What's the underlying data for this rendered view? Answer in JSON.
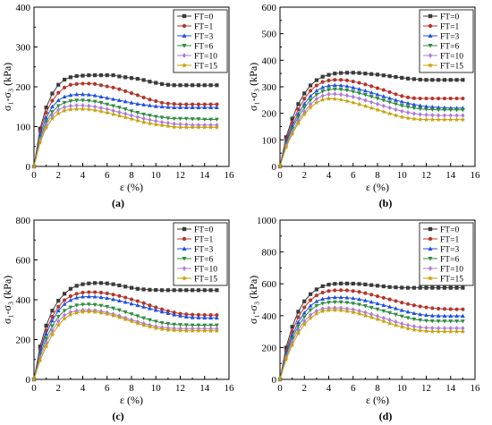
{
  "chart_data": [
    {
      "id": "a",
      "type": "line",
      "panel_label": "(a)",
      "xlabel": "ε (%)",
      "ylabel": "σ₁-σ₃ (kPa)",
      "xlim": [
        0,
        16
      ],
      "ylim": [
        0,
        400
      ],
      "xticks": [
        0,
        2,
        4,
        6,
        8,
        10,
        12,
        14,
        16
      ],
      "yticks": [
        0,
        100,
        200,
        300,
        400
      ],
      "legend_position": "top-right",
      "x": [
        0,
        0.5,
        1,
        1.5,
        2,
        2.5,
        3,
        3.5,
        4,
        4.5,
        5,
        5.5,
        6,
        6.5,
        7,
        7.5,
        8,
        8.5,
        9,
        9.5,
        10,
        10.5,
        11,
        11.5,
        12,
        12.5,
        13,
        13.5,
        14,
        14.5,
        15
      ],
      "series": [
        {
          "name": "FT=0",
          "color": "#3a3a3a",
          "marker": "square",
          "values": [
            0,
            95,
            148,
            183,
            205,
            218,
            224,
            227,
            228,
            229,
            229,
            229,
            229,
            229,
            226,
            224,
            222,
            220,
            217,
            213,
            210,
            207,
            205,
            204,
            204,
            204,
            204,
            204,
            204,
            204,
            204
          ]
        },
        {
          "name": "FT=1",
          "color": "#b5352b",
          "marker": "circle",
          "values": [
            0,
            88,
            135,
            165,
            185,
            198,
            205,
            207,
            208,
            208,
            207,
            204,
            201,
            198,
            194,
            189,
            184,
            179,
            173,
            168,
            164,
            160,
            158,
            157,
            156,
            156,
            156,
            156,
            156,
            156,
            156
          ]
        },
        {
          "name": "FT=3",
          "color": "#1f4fe0",
          "marker": "triangle-up",
          "values": [
            0,
            80,
            122,
            150,
            166,
            175,
            179,
            181,
            181,
            180,
            178,
            175,
            172,
            169,
            166,
            163,
            160,
            157,
            155,
            153,
            151,
            150,
            149,
            148,
            148,
            148,
            148,
            148,
            148,
            148,
            148
          ]
        },
        {
          "name": "FT=6",
          "color": "#2e8b3e",
          "marker": "triangle-down",
          "values": [
            0,
            72,
            112,
            137,
            152,
            160,
            164,
            166,
            166,
            165,
            163,
            160,
            156,
            152,
            148,
            144,
            139,
            135,
            131,
            128,
            125,
            123,
            121,
            120,
            120,
            120,
            119,
            119,
            118,
            118,
            118
          ]
        },
        {
          "name": "FT=10",
          "color": "#b07ad8",
          "marker": "diamond",
          "values": [
            0,
            66,
            104,
            128,
            142,
            149,
            152,
            153,
            153,
            152,
            150,
            147,
            144,
            140,
            136,
            132,
            128,
            124,
            120,
            117,
            114,
            111,
            109,
            107,
            106,
            105,
            104,
            104,
            104,
            104,
            104
          ]
        },
        {
          "name": "FT=15",
          "color": "#c5a000",
          "marker": "star",
          "values": [
            0,
            60,
            97,
            120,
            133,
            140,
            143,
            144,
            144,
            143,
            141,
            138,
            135,
            131,
            127,
            123,
            119,
            115,
            111,
            108,
            105,
            103,
            101,
            99,
            98,
            98,
            98,
            98,
            98,
            98,
            98
          ]
        }
      ]
    },
    {
      "id": "b",
      "type": "line",
      "panel_label": "(b)",
      "xlabel": "ε (%)",
      "ylabel": "σ₁-σ₃ (kPa)",
      "xlim": [
        0,
        16
      ],
      "ylim": [
        0,
        600
      ],
      "xticks": [
        0,
        2,
        4,
        6,
        8,
        10,
        12,
        14,
        16
      ],
      "yticks": [
        0,
        100,
        200,
        300,
        400,
        500,
        600
      ],
      "legend_position": "top-right",
      "x": [
        0,
        0.5,
        1,
        1.5,
        2,
        2.5,
        3,
        3.5,
        4,
        4.5,
        5,
        5.5,
        6,
        6.5,
        7,
        7.5,
        8,
        8.5,
        9,
        9.5,
        10,
        10.5,
        11,
        11.5,
        12,
        12.5,
        13,
        13.5,
        14,
        14.5,
        15
      ],
      "series": [
        {
          "name": "FT=0",
          "color": "#3a3a3a",
          "marker": "square",
          "values": [
            0,
            110,
            180,
            235,
            275,
            305,
            325,
            338,
            345,
            350,
            352,
            353,
            353,
            352,
            350,
            348,
            346,
            343,
            340,
            337,
            334,
            331,
            329,
            327,
            326,
            326,
            326,
            326,
            326,
            326,
            326
          ]
        },
        {
          "name": "FT=1",
          "color": "#b5352b",
          "marker": "circle",
          "values": [
            0,
            100,
            165,
            215,
            255,
            285,
            305,
            318,
            324,
            326,
            326,
            324,
            320,
            315,
            309,
            302,
            295,
            288,
            280,
            272,
            265,
            260,
            257,
            256,
            256,
            256,
            256,
            256,
            256,
            256,
            256
          ]
        },
        {
          "name": "FT=3",
          "color": "#1f4fe0",
          "marker": "triangle-up",
          "values": [
            0,
            92,
            152,
            198,
            236,
            265,
            285,
            298,
            304,
            306,
            305,
            302,
            297,
            291,
            285,
            278,
            271,
            264,
            257,
            250,
            244,
            238,
            233,
            229,
            226,
            224,
            222,
            221,
            220,
            220,
            220
          ]
        },
        {
          "name": "FT=6",
          "color": "#2e8b3e",
          "marker": "triangle-down",
          "values": [
            0,
            85,
            142,
            186,
            222,
            250,
            270,
            283,
            289,
            291,
            290,
            287,
            282,
            276,
            270,
            263,
            256,
            249,
            242,
            235,
            229,
            224,
            220,
            217,
            215,
            214,
            213,
            213,
            213,
            213,
            213
          ]
        },
        {
          "name": "FT=10",
          "color": "#b07ad8",
          "marker": "diamond",
          "values": [
            0,
            78,
            130,
            172,
            206,
            234,
            254,
            266,
            272,
            273,
            271,
            267,
            262,
            256,
            249,
            242,
            235,
            228,
            221,
            214,
            208,
            203,
            199,
            196,
            194,
            193,
            192,
            192,
            192,
            192,
            192
          ]
        },
        {
          "name": "FT=15",
          "color": "#c5a000",
          "marker": "star",
          "values": [
            0,
            72,
            122,
            162,
            196,
            222,
            240,
            251,
            255,
            254,
            251,
            246,
            240,
            234,
            227,
            220,
            213,
            206,
            199,
            192,
            186,
            182,
            179,
            177,
            176,
            176,
            176,
            176,
            176,
            176,
            176
          ]
        }
      ]
    },
    {
      "id": "c",
      "type": "line",
      "panel_label": "(c)",
      "xlabel": "ε (%)",
      "ylabel": "σ₁-σ₃ (kPa)",
      "xlim": [
        0,
        16
      ],
      "ylim": [
        0,
        800
      ],
      "xticks": [
        0,
        2,
        4,
        6,
        8,
        10,
        12,
        14,
        16
      ],
      "yticks": [
        0,
        200,
        400,
        600,
        800
      ],
      "legend_position": "top-right",
      "x": [
        0,
        0.5,
        1,
        1.5,
        2,
        2.5,
        3,
        3.5,
        4,
        4.5,
        5,
        5.5,
        6,
        6.5,
        7,
        7.5,
        8,
        8.5,
        9,
        9.5,
        10,
        10.5,
        11,
        11.5,
        12,
        12.5,
        13,
        13.5,
        14,
        14.5,
        15
      ],
      "series": [
        {
          "name": "FT=0",
          "color": "#3a3a3a",
          "marker": "square",
          "values": [
            0,
            165,
            270,
            345,
            395,
            430,
            455,
            470,
            478,
            482,
            484,
            484,
            482,
            478,
            472,
            466,
            460,
            455,
            452,
            450,
            449,
            448,
            448,
            448,
            448,
            448,
            448,
            448,
            448,
            448,
            448
          ]
        },
        {
          "name": "FT=1",
          "color": "#b5352b",
          "marker": "circle",
          "values": [
            0,
            150,
            245,
            315,
            365,
            398,
            418,
            430,
            436,
            438,
            438,
            436,
            432,
            426,
            419,
            411,
            402,
            393,
            383,
            372,
            362,
            352,
            343,
            336,
            330,
            327,
            325,
            324,
            323,
            323,
            323
          ]
        },
        {
          "name": "FT=3",
          "color": "#1f4fe0",
          "marker": "triangle-up",
          "values": [
            0,
            140,
            228,
            295,
            345,
            378,
            398,
            410,
            415,
            416,
            415,
            412,
            408,
            402,
            395,
            388,
            380,
            372,
            364,
            356,
            348,
            340,
            332,
            325,
            319,
            314,
            311,
            310,
            309,
            309,
            309
          ]
        },
        {
          "name": "FT=6",
          "color": "#2e8b3e",
          "marker": "triangle-down",
          "values": [
            0,
            125,
            205,
            268,
            315,
            345,
            362,
            372,
            376,
            377,
            375,
            371,
            365,
            357,
            348,
            338,
            328,
            318,
            308,
            299,
            291,
            284,
            279,
            276,
            274,
            273,
            272,
            272,
            272,
            272,
            272
          ]
        },
        {
          "name": "FT=10",
          "color": "#b07ad8",
          "marker": "diamond",
          "values": [
            0,
            110,
            185,
            245,
            292,
            322,
            338,
            345,
            348,
            348,
            346,
            342,
            336,
            328,
            319,
            309,
            299,
            290,
            281,
            273,
            266,
            261,
            258,
            256,
            255,
            255,
            255,
            255,
            255,
            255,
            255
          ]
        },
        {
          "name": "FT=15",
          "color": "#c5a000",
          "marker": "star",
          "values": [
            0,
            95,
            165,
            225,
            272,
            305,
            325,
            335,
            339,
            340,
            338,
            334,
            328,
            320,
            311,
            301,
            291,
            281,
            272,
            264,
            257,
            252,
            248,
            246,
            245,
            244,
            244,
            244,
            244,
            244,
            244
          ]
        }
      ]
    },
    {
      "id": "d",
      "type": "line",
      "panel_label": "(d)",
      "xlabel": "ε (%)",
      "ylabel": "σ₁-σ₃ (kPa)",
      "xlim": [
        0,
        16
      ],
      "ylim": [
        0,
        1000
      ],
      "xticks": [
        0,
        2,
        4,
        6,
        8,
        10,
        12,
        14,
        16
      ],
      "yticks": [
        0,
        200,
        400,
        600,
        800,
        1000
      ],
      "legend_position": "top-right",
      "x": [
        0,
        0.5,
        1,
        1.5,
        2,
        2.5,
        3,
        3.5,
        4,
        4.5,
        5,
        5.5,
        6,
        6.5,
        7,
        7.5,
        8,
        8.5,
        9,
        9.5,
        10,
        10.5,
        11,
        11.5,
        12,
        12.5,
        13,
        13.5,
        14,
        14.5,
        15
      ],
      "series": [
        {
          "name": "FT=0",
          "color": "#3a3a3a",
          "marker": "square",
          "values": [
            0,
            200,
            330,
            425,
            490,
            535,
            565,
            585,
            595,
            600,
            602,
            602,
            601,
            599,
            596,
            592,
            588,
            584,
            580,
            578,
            576,
            575,
            575,
            575,
            575,
            575,
            575,
            575,
            575,
            575,
            575
          ]
        },
        {
          "name": "FT=1",
          "color": "#b5352b",
          "marker": "circle",
          "values": [
            0,
            180,
            300,
            390,
            452,
            497,
            527,
            545,
            555,
            559,
            560,
            559,
            555,
            549,
            541,
            532,
            522,
            512,
            502,
            492,
            482,
            473,
            465,
            458,
            452,
            447,
            444,
            442,
            441,
            440,
            440
          ]
        },
        {
          "name": "FT=3",
          "color": "#1f4fe0",
          "marker": "triangle-up",
          "values": [
            0,
            165,
            275,
            358,
            418,
            462,
            490,
            505,
            512,
            515,
            515,
            513,
            509,
            503,
            495,
            486,
            476,
            466,
            456,
            445,
            434,
            424,
            415,
            408,
            403,
            400,
            399,
            398,
            398,
            398,
            398
          ]
        },
        {
          "name": "FT=6",
          "color": "#2e8b3e",
          "marker": "triangle-down",
          "values": [
            0,
            152,
            255,
            335,
            392,
            435,
            462,
            477,
            483,
            485,
            485,
            482,
            477,
            470,
            461,
            451,
            440,
            429,
            418,
            407,
            396,
            386,
            378,
            372,
            368,
            366,
            365,
            365,
            365,
            365,
            365
          ]
        },
        {
          "name": "FT=10",
          "color": "#b07ad8",
          "marker": "diamond",
          "values": [
            0,
            138,
            235,
            310,
            365,
            405,
            430,
            443,
            448,
            449,
            448,
            444,
            438,
            430,
            420,
            409,
            397,
            385,
            373,
            361,
            350,
            340,
            332,
            327,
            324,
            322,
            321,
            321,
            321,
            321,
            321
          ]
        },
        {
          "name": "FT=15",
          "color": "#c5a000",
          "marker": "star",
          "values": [
            0,
            125,
            215,
            288,
            345,
            385,
            412,
            428,
            434,
            435,
            433,
            428,
            421,
            412,
            401,
            389,
            377,
            364,
            352,
            340,
            329,
            319,
            311,
            306,
            303,
            301,
            300,
            300,
            300,
            300,
            300
          ]
        }
      ]
    }
  ]
}
